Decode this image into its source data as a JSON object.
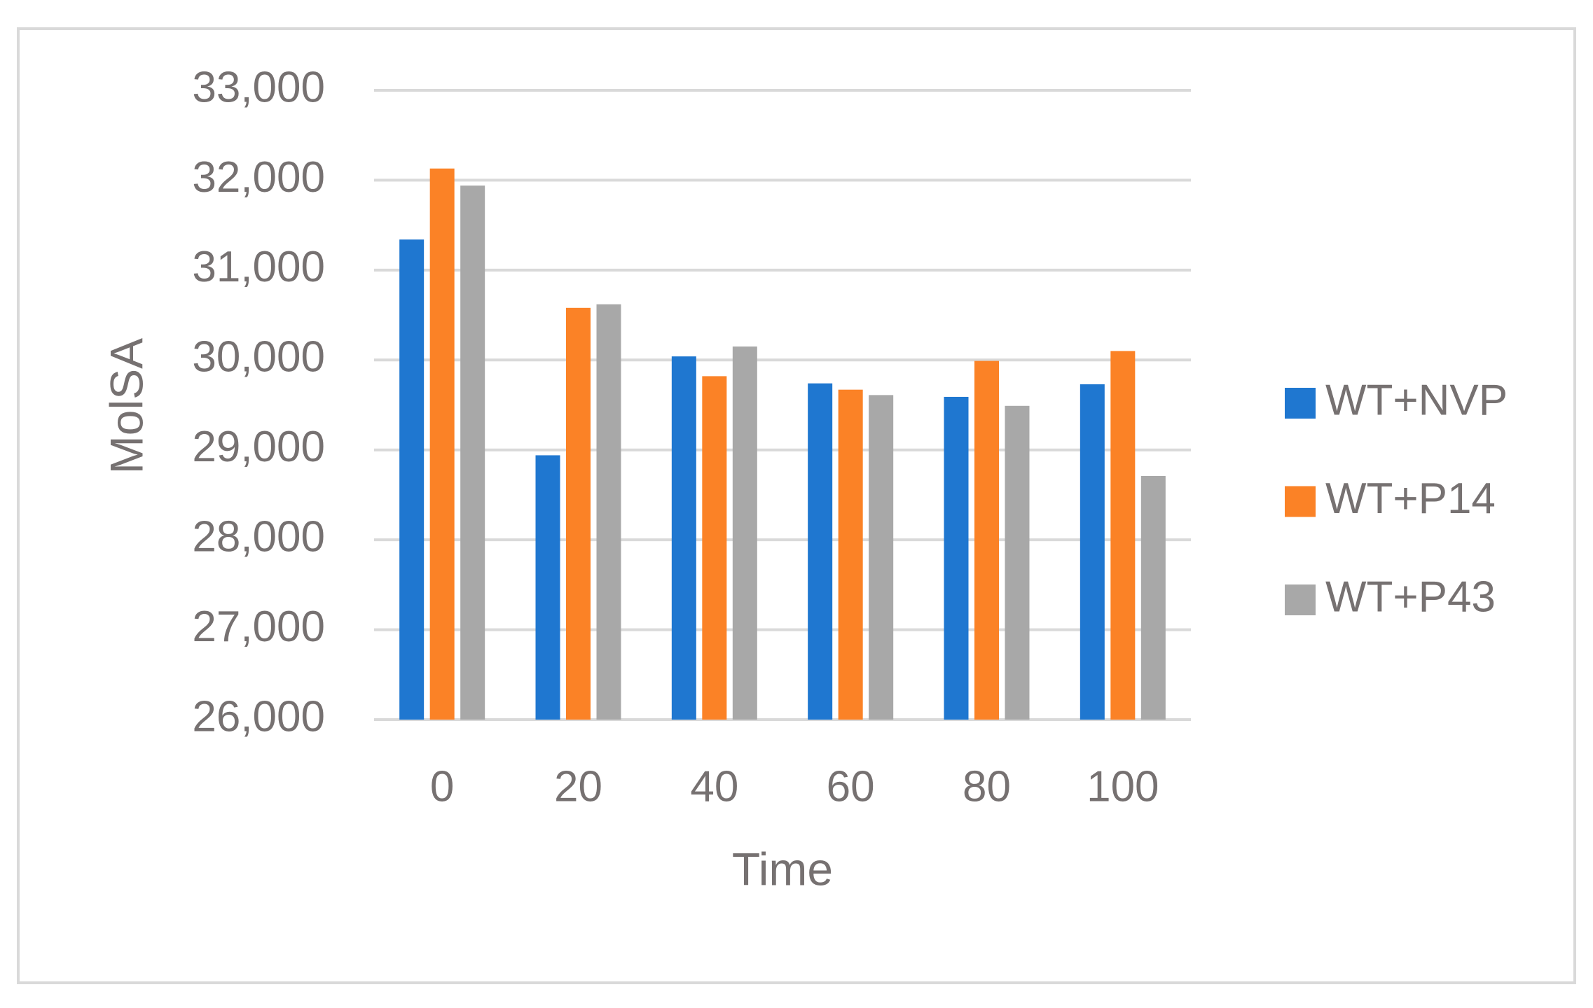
{
  "chart_data": {
    "type": "bar",
    "categories": [
      "0",
      "20",
      "40",
      "60",
      "80",
      "100"
    ],
    "x_label": "Time",
    "y_label": "MolSA",
    "series": [
      {
        "name": "WT+NVP",
        "color": "#1f77d0",
        "values": [
          31340,
          28940,
          30040,
          29740,
          29590,
          29730
        ]
      },
      {
        "name": "WT+P14",
        "color": "#fb8226",
        "values": [
          32130,
          30580,
          29820,
          29670,
          29990,
          30100
        ]
      },
      {
        "name": "WT+P43",
        "color": "#a8a8a8",
        "values": [
          31940,
          30620,
          30150,
          29610,
          29490,
          28710
        ]
      }
    ],
    "ylim": [
      26000,
      33000
    ],
    "yticks": [
      {
        "value": 26000,
        "label": "26,000"
      },
      {
        "value": 27000,
        "label": "27,000"
      },
      {
        "value": 28000,
        "label": "28,000"
      },
      {
        "value": 29000,
        "label": "29,000"
      },
      {
        "value": 30000,
        "label": "30,000"
      },
      {
        "value": 31000,
        "label": "31,000"
      },
      {
        "value": 32000,
        "label": "32,000"
      },
      {
        "value": 33000,
        "label": "33,000"
      }
    ],
    "grid": true,
    "legend": "right"
  }
}
